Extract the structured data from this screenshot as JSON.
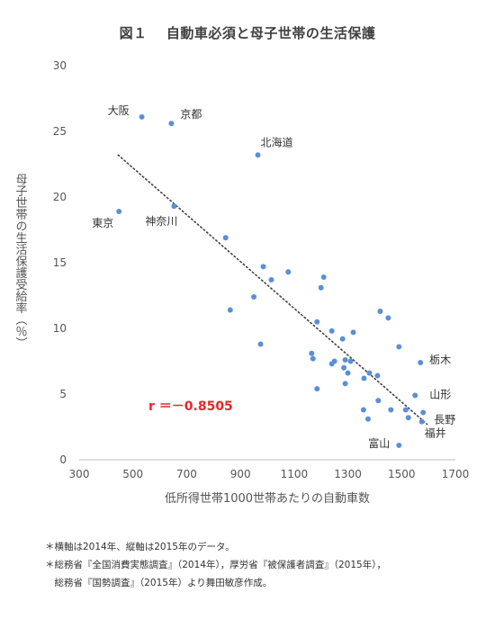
{
  "chart_data": {
    "type": "scatter",
    "title": "図１　 自動車必須と母子世帯の生活保護",
    "xlabel": "低所得世帯1000世帯あたりの自動車数",
    "ylabel": "母子世帯の生活保護受給率（％）",
    "xlim": [
      300,
      1700
    ],
    "ylim": [
      0,
      30
    ],
    "x_ticks": [
      300,
      500,
      700,
      900,
      1100,
      1300,
      1500,
      1700
    ],
    "y_ticks": [
      0,
      5,
      10,
      15,
      20,
      25,
      30
    ],
    "grid": false,
    "trendline": {
      "style": "dotted",
      "x": [
        445,
        1595
      ],
      "y": [
        23.2,
        2.7
      ]
    },
    "correlation_label": "r ＝－0.8505",
    "color": "#5b8fd6",
    "points": [
      {
        "x": 533,
        "y": 26.1,
        "label": "大阪"
      },
      {
        "x": 643,
        "y": 25.6,
        "label": "京都"
      },
      {
        "x": 965,
        "y": 23.2,
        "label": "北海道"
      },
      {
        "x": 448,
        "y": 18.9,
        "label": "東京"
      },
      {
        "x": 653,
        "y": 19.3,
        "label": "神奈川"
      },
      {
        "x": 845,
        "y": 16.9
      },
      {
        "x": 985,
        "y": 14.7
      },
      {
        "x": 1015,
        "y": 13.7
      },
      {
        "x": 1078,
        "y": 14.3
      },
      {
        "x": 950,
        "y": 12.4
      },
      {
        "x": 862,
        "y": 11.4
      },
      {
        "x": 975,
        "y": 8.8
      },
      {
        "x": 1210,
        "y": 13.9
      },
      {
        "x": 1200,
        "y": 13.1
      },
      {
        "x": 1185,
        "y": 10.5
      },
      {
        "x": 1420,
        "y": 11.3
      },
      {
        "x": 1450,
        "y": 10.8
      },
      {
        "x": 1240,
        "y": 9.8
      },
      {
        "x": 1320,
        "y": 9.7
      },
      {
        "x": 1490,
        "y": 8.6
      },
      {
        "x": 1280,
        "y": 9.2
      },
      {
        "x": 1165,
        "y": 8.1
      },
      {
        "x": 1170,
        "y": 7.7
      },
      {
        "x": 1240,
        "y": 7.3
      },
      {
        "x": 1250,
        "y": 7.5
      },
      {
        "x": 1290,
        "y": 7.6
      },
      {
        "x": 1310,
        "y": 7.5
      },
      {
        "x": 1285,
        "y": 7.0
      },
      {
        "x": 1300,
        "y": 6.6
      },
      {
        "x": 1360,
        "y": 6.2
      },
      {
        "x": 1380,
        "y": 6.6
      },
      {
        "x": 1410,
        "y": 6.4
      },
      {
        "x": 1290,
        "y": 5.8
      },
      {
        "x": 1185,
        "y": 5.4
      },
      {
        "x": 1413,
        "y": 4.5
      },
      {
        "x": 1358,
        "y": 3.8
      },
      {
        "x": 1375,
        "y": 3.1
      },
      {
        "x": 1460,
        "y": 3.8
      },
      {
        "x": 1515,
        "y": 3.8
      },
      {
        "x": 1525,
        "y": 3.2
      },
      {
        "x": 1570,
        "y": 7.4,
        "label": "栃木"
      },
      {
        "x": 1550,
        "y": 4.9,
        "label": "山形"
      },
      {
        "x": 1580,
        "y": 3.6,
        "label": "長野"
      },
      {
        "x": 1575,
        "y": 2.9,
        "label": "福井"
      },
      {
        "x": 1490,
        "y": 1.1,
        "label": "富山"
      }
    ]
  },
  "notes": [
    "＊横軸は2014年、縦軸は2015年のデータ。",
    "＊総務省『全国消費実態調査』（2014年），厚労省『被保護者調査』（2015年），",
    "　総務省『国勢調査』（2015年）より舞田敏彦作成。"
  ]
}
